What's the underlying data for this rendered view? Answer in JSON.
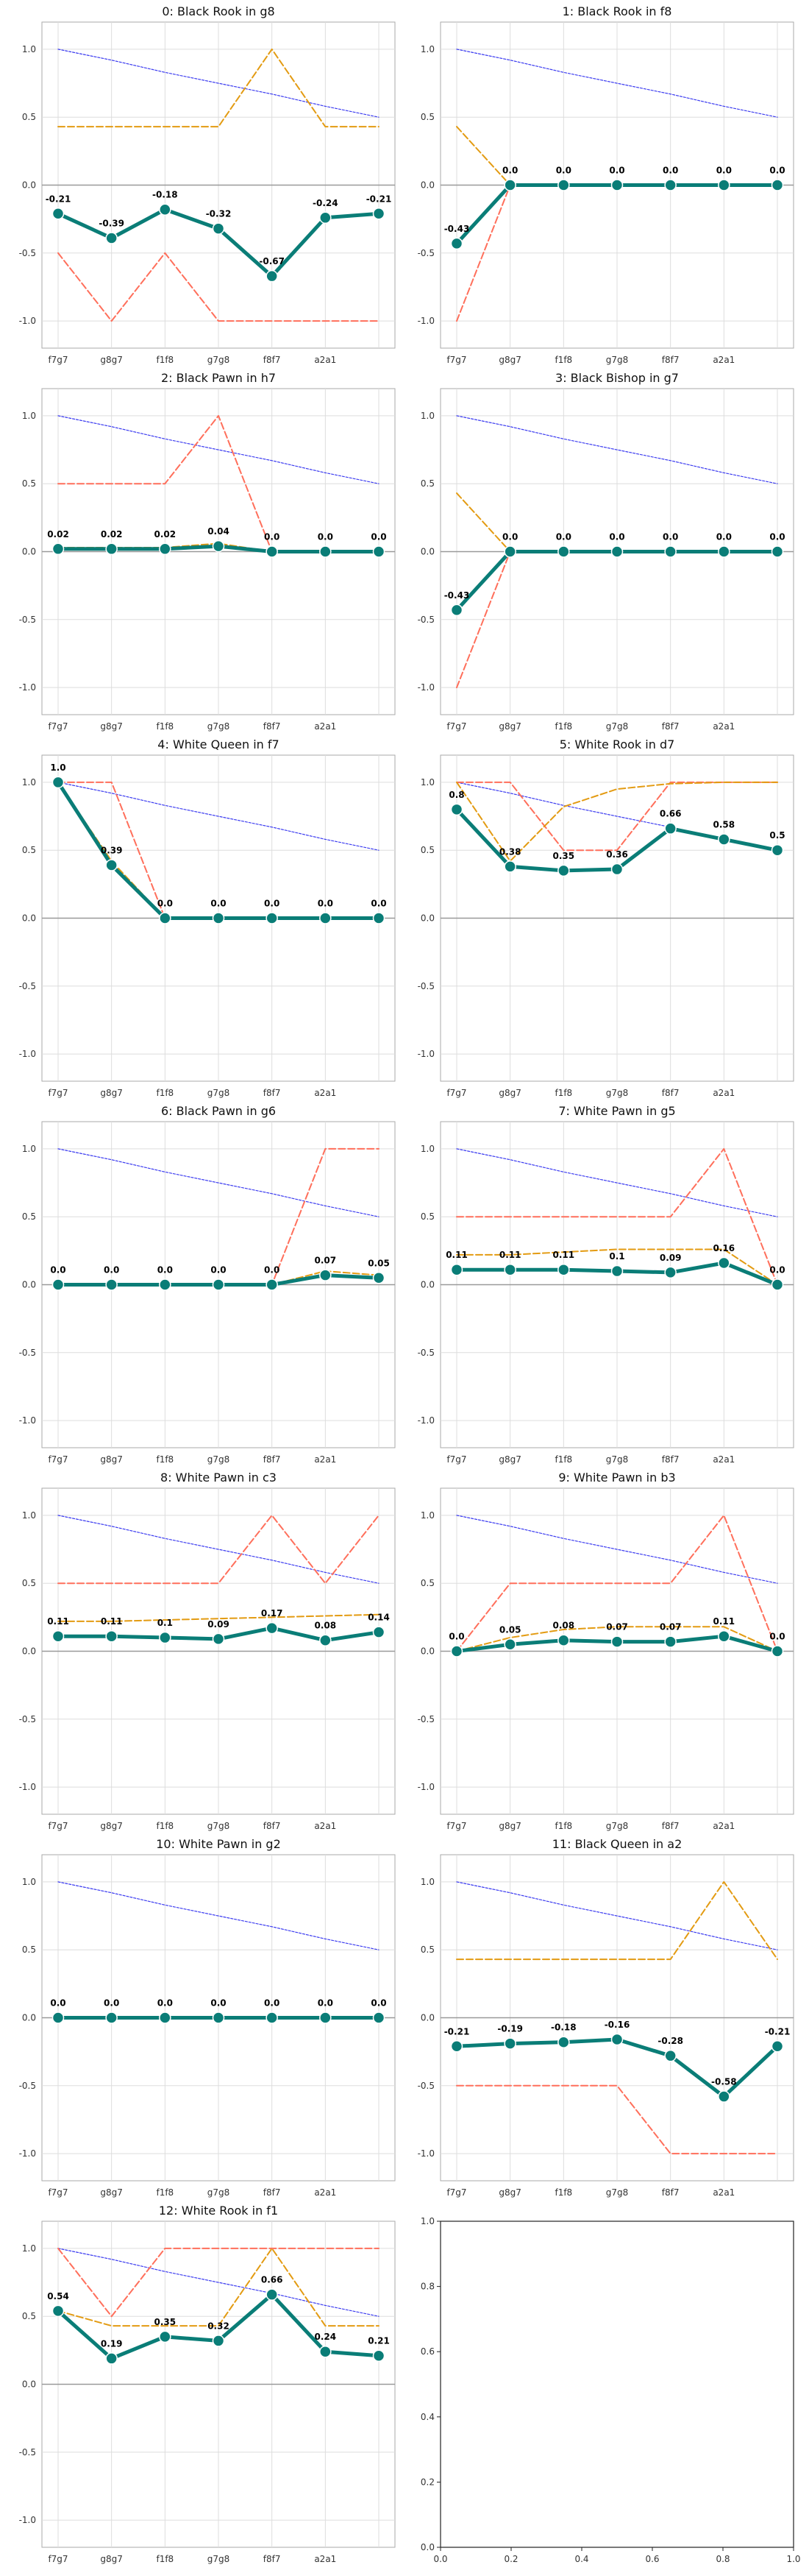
{
  "colors": {
    "main": "#0a7d77",
    "dashed_orange": "#e39b12",
    "dashed_red": "#ff6f5b",
    "dotted_blue": "#3b3bf0",
    "grid": "#dddddd",
    "zero": "#999999",
    "frame": "#aaaaaa"
  },
  "chart_data": [
    {
      "type": "line",
      "title": "0: Black Rook in g8",
      "categories": [
        "f7g7",
        "g8g7",
        "f1f8",
        "g7g8",
        "f8f7",
        "a2a1",
        ""
      ],
      "ylim": [
        -1.2,
        1.2
      ],
      "yticks": [
        -1.0,
        -0.5,
        0.0,
        0.5,
        1.0
      ],
      "grid": true,
      "series": [
        {
          "values": [
            -0.21,
            -0.39,
            -0.18,
            -0.32,
            -0.67,
            -0.24,
            -0.21
          ]
        },
        {
          "values": [
            0.43,
            0.43,
            0.43,
            0.43,
            1.0,
            0.43,
            0.43
          ]
        },
        {
          "values": [
            -0.5,
            -1.0,
            -0.5,
            -1.0,
            -1.0,
            -1.0,
            -1.0
          ]
        },
        {
          "values": [
            1.0,
            0.92,
            0.83,
            0.75,
            0.67,
            0.58,
            0.5
          ]
        }
      ],
      "data_labels": [
        "-0.21",
        "-0.39",
        "-0.18",
        "-0.32",
        "-0.67",
        "-0.24",
        "-0.21"
      ]
    },
    {
      "type": "line",
      "title": "1: Black Rook in f8",
      "categories": [
        "f7g7",
        "g8g7",
        "f1f8",
        "g7g8",
        "f8f7",
        "a2a1",
        ""
      ],
      "ylim": [
        -1.2,
        1.2
      ],
      "yticks": [
        -1.0,
        -0.5,
        0.0,
        0.5,
        1.0
      ],
      "grid": true,
      "series": [
        {
          "values": [
            -0.43,
            0.0,
            0.0,
            0.0,
            0.0,
            0.0,
            0.0
          ]
        },
        {
          "values": [
            0.43,
            0.0,
            0.0,
            0.0,
            0.0,
            0.0,
            0.0
          ]
        },
        {
          "values": [
            -1.0,
            0.0,
            0.0,
            0.0,
            0.0,
            0.0,
            0.0
          ]
        },
        {
          "values": [
            1.0,
            0.92,
            0.83,
            0.75,
            0.67,
            0.58,
            0.5
          ]
        }
      ],
      "data_labels": [
        "-0.43",
        "0.0",
        "0.0",
        "0.0",
        "0.0",
        "0.0",
        "0.0"
      ]
    },
    {
      "type": "line",
      "title": "2: Black Pawn in h7",
      "categories": [
        "f7g7",
        "g8g7",
        "f1f8",
        "g7g8",
        "f8f7",
        "a2a1",
        ""
      ],
      "ylim": [
        -1.2,
        1.2
      ],
      "yticks": [
        -1.0,
        -0.5,
        0.0,
        0.5,
        1.0
      ],
      "grid": true,
      "series": [
        {
          "values": [
            0.02,
            0.02,
            0.02,
            0.04,
            0.0,
            0.0,
            0.0
          ]
        },
        {
          "values": [
            0.03,
            0.03,
            0.03,
            0.06,
            0.0,
            0.0,
            0.0
          ]
        },
        {
          "values": [
            0.5,
            0.5,
            0.5,
            1.0,
            0.0,
            0.0,
            0.0
          ]
        },
        {
          "values": [
            1.0,
            0.92,
            0.83,
            0.75,
            0.67,
            0.58,
            0.5
          ]
        }
      ],
      "data_labels": [
        "0.02",
        "0.02",
        "0.02",
        "0.04",
        "0.0",
        "0.0",
        "0.0"
      ]
    },
    {
      "type": "line",
      "title": "3: Black Bishop in g7",
      "categories": [
        "f7g7",
        "g8g7",
        "f1f8",
        "g7g8",
        "f8f7",
        "a2a1",
        ""
      ],
      "ylim": [
        -1.2,
        1.2
      ],
      "yticks": [
        -1.0,
        -0.5,
        0.0,
        0.5,
        1.0
      ],
      "grid": true,
      "series": [
        {
          "values": [
            -0.43,
            0.0,
            0.0,
            0.0,
            0.0,
            0.0,
            0.0
          ]
        },
        {
          "values": [
            0.43,
            0.0,
            0.0,
            0.0,
            0.0,
            0.0,
            0.0
          ]
        },
        {
          "values": [
            -1.0,
            0.0,
            0.0,
            0.0,
            0.0,
            0.0,
            0.0
          ]
        },
        {
          "values": [
            1.0,
            0.92,
            0.83,
            0.75,
            0.67,
            0.58,
            0.5
          ]
        }
      ],
      "data_labels": [
        "-0.43",
        "0.0",
        "0.0",
        "0.0",
        "0.0",
        "0.0",
        "0.0"
      ]
    },
    {
      "type": "line",
      "title": "4: White Queen in f7",
      "categories": [
        "f7g7",
        "g8g7",
        "f1f8",
        "g7g8",
        "f8f7",
        "a2a1",
        ""
      ],
      "ylim": [
        -1.2,
        1.2
      ],
      "yticks": [
        -1.0,
        -0.5,
        0.0,
        0.5,
        1.0
      ],
      "grid": true,
      "series": [
        {
          "values": [
            1.0,
            0.39,
            0.0,
            0.0,
            0.0,
            0.0,
            0.0
          ]
        },
        {
          "values": [
            1.0,
            0.42,
            0.0,
            0.0,
            0.0,
            0.0,
            0.0
          ]
        },
        {
          "values": [
            1.0,
            1.0,
            0.0,
            0.0,
            0.0,
            0.0,
            0.0
          ]
        },
        {
          "values": [
            1.0,
            0.92,
            0.83,
            0.75,
            0.67,
            0.58,
            0.5
          ]
        }
      ],
      "data_labels": [
        "1.0",
        "0.39",
        "0.0",
        "0.0",
        "0.0",
        "0.0",
        "0.0"
      ]
    },
    {
      "type": "line",
      "title": "5: White Rook in d7",
      "categories": [
        "f7g7",
        "g8g7",
        "f1f8",
        "g7g8",
        "f8f7",
        "a2a1",
        ""
      ],
      "ylim": [
        -1.2,
        1.2
      ],
      "yticks": [
        -1.0,
        -0.5,
        0.0,
        0.5,
        1.0
      ],
      "grid": true,
      "series": [
        {
          "values": [
            0.8,
            0.38,
            0.35,
            0.36,
            0.66,
            0.58,
            0.5
          ]
        },
        {
          "values": [
            1.0,
            0.42,
            0.82,
            0.95,
            0.99,
            1.0,
            1.0
          ]
        },
        {
          "values": [
            1.0,
            1.0,
            0.5,
            0.5,
            1.0,
            1.0,
            1.0
          ]
        },
        {
          "values": [
            1.0,
            0.92,
            0.83,
            0.75,
            0.67,
            0.58,
            0.5
          ]
        }
      ],
      "data_labels": [
        "0.8",
        "0.38",
        "0.35",
        "0.36",
        "0.66",
        "0.58",
        "0.5"
      ]
    },
    {
      "type": "line",
      "title": "6: Black Pawn in g6",
      "categories": [
        "f7g7",
        "g8g7",
        "f1f8",
        "g7g8",
        "f8f7",
        "a2a1",
        ""
      ],
      "ylim": [
        -1.2,
        1.2
      ],
      "yticks": [
        -1.0,
        -0.5,
        0.0,
        0.5,
        1.0
      ],
      "grid": true,
      "series": [
        {
          "values": [
            0.0,
            0.0,
            0.0,
            0.0,
            0.0,
            0.07,
            0.05
          ]
        },
        {
          "values": [
            0.0,
            0.0,
            0.0,
            0.0,
            0.0,
            0.1,
            0.07
          ]
        },
        {
          "values": [
            0.0,
            0.0,
            0.0,
            0.0,
            0.0,
            1.0,
            1.0
          ]
        },
        {
          "values": [
            1.0,
            0.92,
            0.83,
            0.75,
            0.67,
            0.58,
            0.5
          ]
        }
      ],
      "data_labels": [
        "0.0",
        "0.0",
        "0.0",
        "0.0",
        "0.0",
        "0.07",
        "0.05"
      ]
    },
    {
      "type": "line",
      "title": "7: White Pawn in g5",
      "categories": [
        "f7g7",
        "g8g7",
        "f1f8",
        "g7g8",
        "f8f7",
        "a2a1",
        ""
      ],
      "ylim": [
        -1.2,
        1.2
      ],
      "yticks": [
        -1.0,
        -0.5,
        0.0,
        0.5,
        1.0
      ],
      "grid": true,
      "series": [
        {
          "values": [
            0.11,
            0.11,
            0.11,
            0.1,
            0.09,
            0.16,
            0.0
          ]
        },
        {
          "values": [
            0.22,
            0.22,
            0.24,
            0.26,
            0.26,
            0.26,
            0.0
          ]
        },
        {
          "values": [
            0.5,
            0.5,
            0.5,
            0.5,
            0.5,
            1.0,
            0.0
          ]
        },
        {
          "values": [
            1.0,
            0.92,
            0.83,
            0.75,
            0.67,
            0.58,
            0.5
          ]
        }
      ],
      "data_labels": [
        "0.11",
        "0.11",
        "0.11",
        "0.1",
        "0.09",
        "0.16",
        "0.0"
      ]
    },
    {
      "type": "line",
      "title": "8: White Pawn in c3",
      "categories": [
        "f7g7",
        "g8g7",
        "f1f8",
        "g7g8",
        "f8f7",
        "a2a1",
        ""
      ],
      "ylim": [
        -1.2,
        1.2
      ],
      "yticks": [
        -1.0,
        -0.5,
        0.0,
        0.5,
        1.0
      ],
      "grid": true,
      "series": [
        {
          "values": [
            0.11,
            0.11,
            0.1,
            0.09,
            0.17,
            0.08,
            0.14
          ]
        },
        {
          "values": [
            0.22,
            0.22,
            0.23,
            0.24,
            0.25,
            0.26,
            0.27
          ]
        },
        {
          "values": [
            0.5,
            0.5,
            0.5,
            0.5,
            1.0,
            0.5,
            1.0
          ]
        },
        {
          "values": [
            1.0,
            0.92,
            0.83,
            0.75,
            0.67,
            0.58,
            0.5
          ]
        }
      ],
      "data_labels": [
        "0.11",
        "0.11",
        "0.1",
        "0.09",
        "0.17",
        "0.08",
        "0.14"
      ]
    },
    {
      "type": "line",
      "title": "9: White Pawn in b3",
      "categories": [
        "f7g7",
        "g8g7",
        "f1f8",
        "g7g8",
        "f8f7",
        "a2a1",
        ""
      ],
      "ylim": [
        -1.2,
        1.2
      ],
      "yticks": [
        -1.0,
        -0.5,
        0.0,
        0.5,
        1.0
      ],
      "grid": true,
      "series": [
        {
          "values": [
            0.0,
            0.05,
            0.08,
            0.07,
            0.07,
            0.11,
            0.0
          ]
        },
        {
          "values": [
            0.0,
            0.1,
            0.16,
            0.18,
            0.18,
            0.18,
            0.0
          ]
        },
        {
          "values": [
            0.0,
            0.5,
            0.5,
            0.5,
            0.5,
            1.0,
            0.0
          ]
        },
        {
          "values": [
            1.0,
            0.92,
            0.83,
            0.75,
            0.67,
            0.58,
            0.5
          ]
        }
      ],
      "data_labels": [
        "0.0",
        "0.05",
        "0.08",
        "0.07",
        "0.07",
        "0.11",
        "0.0"
      ]
    },
    {
      "type": "line",
      "title": "10: White Pawn in g2",
      "categories": [
        "f7g7",
        "g8g7",
        "f1f8",
        "g7g8",
        "f8f7",
        "a2a1",
        ""
      ],
      "ylim": [
        -1.2,
        1.2
      ],
      "yticks": [
        -1.0,
        -0.5,
        0.0,
        0.5,
        1.0
      ],
      "grid": true,
      "series": [
        {
          "values": [
            0.0,
            0.0,
            0.0,
            0.0,
            0.0,
            0.0,
            0.0
          ]
        },
        {
          "values": [
            0.0,
            0.0,
            0.0,
            0.0,
            0.0,
            0.0,
            0.0
          ]
        },
        {
          "values": [
            0.0,
            0.0,
            0.0,
            0.0,
            0.0,
            0.0,
            0.0
          ]
        },
        {
          "values": [
            1.0,
            0.92,
            0.83,
            0.75,
            0.67,
            0.58,
            0.5
          ]
        }
      ],
      "data_labels": [
        "0.0",
        "0.0",
        "0.0",
        "0.0",
        "0.0",
        "0.0",
        "0.0"
      ]
    },
    {
      "type": "line",
      "title": "11: Black Queen in a2",
      "categories": [
        "f7g7",
        "g8g7",
        "f1f8",
        "g7g8",
        "f8f7",
        "a2a1",
        ""
      ],
      "ylim": [
        -1.2,
        1.2
      ],
      "yticks": [
        -1.0,
        -0.5,
        0.0,
        0.5,
        1.0
      ],
      "grid": true,
      "series": [
        {
          "values": [
            -0.21,
            -0.19,
            -0.18,
            -0.16,
            -0.28,
            -0.58,
            -0.21
          ]
        },
        {
          "values": [
            0.43,
            0.43,
            0.43,
            0.43,
            0.43,
            1.0,
            0.43
          ]
        },
        {
          "values": [
            -0.5,
            -0.5,
            -0.5,
            -0.5,
            -1.0,
            -1.0,
            -1.0
          ]
        },
        {
          "values": [
            1.0,
            0.92,
            0.83,
            0.75,
            0.67,
            0.58,
            0.5
          ]
        }
      ],
      "data_labels": [
        "-0.21",
        "-0.19",
        "-0.18",
        "-0.16",
        "-0.28",
        "-0.58",
        "-0.21"
      ]
    },
    {
      "type": "line",
      "title": "12: White Rook in f1",
      "categories": [
        "f7g7",
        "g8g7",
        "f1f8",
        "g7g8",
        "f8f7",
        "a2a1",
        ""
      ],
      "ylim": [
        -1.2,
        1.2
      ],
      "yticks": [
        -1.0,
        -0.5,
        0.0,
        0.5,
        1.0
      ],
      "grid": true,
      "series": [
        {
          "values": [
            0.54,
            0.19,
            0.35,
            0.32,
            0.66,
            0.24,
            0.21
          ]
        },
        {
          "values": [
            0.54,
            0.43,
            0.43,
            0.43,
            1.0,
            0.43,
            0.43
          ]
        },
        {
          "values": [
            1.0,
            0.5,
            1.0,
            1.0,
            1.0,
            1.0,
            1.0
          ]
        },
        {
          "values": [
            1.0,
            0.92,
            0.83,
            0.75,
            0.67,
            0.58,
            0.5
          ]
        }
      ],
      "data_labels": [
        "0.54",
        "0.19",
        "0.35",
        "0.32",
        "0.66",
        "0.24",
        "0.21"
      ]
    },
    {
      "type": "line",
      "title": "",
      "categories": [],
      "xlim": [
        0.0,
        1.0
      ],
      "ylim": [
        0.0,
        1.0
      ],
      "xticks": [
        0.0,
        0.2,
        0.4,
        0.6,
        0.8,
        1.0
      ],
      "yticks": [
        0.0,
        0.2,
        0.4,
        0.6,
        0.8,
        1.0
      ],
      "grid": false,
      "empty": true,
      "series": []
    }
  ]
}
